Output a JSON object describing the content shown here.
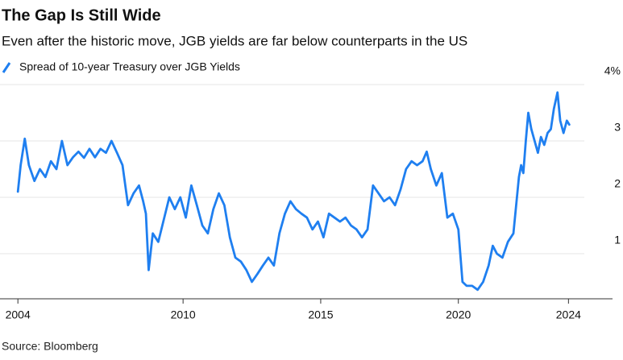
{
  "chart_data": {
    "type": "line",
    "title": "The Gap Is Still Wide",
    "subtitle": "Even after the historic move, JGB yields are far below counterparts in the US",
    "source": "Source: Bloomberg",
    "x": [
      2004.0,
      2004.1,
      2004.25,
      2004.4,
      2004.6,
      2004.8,
      2005.0,
      2005.2,
      2005.4,
      2005.6,
      2005.8,
      2006.0,
      2006.2,
      2006.4,
      2006.6,
      2006.8,
      2007.0,
      2007.2,
      2007.4,
      2007.6,
      2007.8,
      2008.0,
      2008.2,
      2008.4,
      2008.55,
      2008.65,
      2008.75,
      2008.9,
      2009.1,
      2009.5,
      2009.7,
      2009.9,
      2010.1,
      2010.3,
      2010.5,
      2010.7,
      2010.9,
      2011.1,
      2011.3,
      2011.5,
      2011.7,
      2011.9,
      2012.1,
      2012.3,
      2012.5,
      2012.7,
      2012.9,
      2013.1,
      2013.3,
      2013.5,
      2013.7,
      2013.9,
      2014.1,
      2014.3,
      2014.5,
      2014.7,
      2014.9,
      2015.1,
      2015.3,
      2015.5,
      2015.7,
      2015.9,
      2016.1,
      2016.3,
      2016.5,
      2016.7,
      2016.9,
      2017.1,
      2017.3,
      2017.5,
      2017.7,
      2017.9,
      2018.1,
      2018.3,
      2018.5,
      2018.7,
      2018.85,
      2019.0,
      2019.2,
      2019.4,
      2019.6,
      2019.8,
      2020.0,
      2020.15,
      2020.3,
      2020.5,
      2020.7,
      2020.9,
      2021.1,
      2021.25,
      2021.4,
      2021.6,
      2021.8,
      2022.0,
      2022.1,
      2022.2,
      2022.28,
      2022.36,
      2022.45,
      2022.54,
      2022.65,
      2022.77,
      2022.89,
      2023.0,
      2023.12,
      2023.24,
      2023.36,
      2023.47,
      2023.6,
      2023.7,
      2023.82,
      2023.94,
      2024.03
    ],
    "series": [
      {
        "name": "Spread of 10-year Treasury over JGB Yields",
        "color": "#1f7ff0",
        "values": [
          2.1,
          2.57,
          3.04,
          2.57,
          2.29,
          2.5,
          2.36,
          2.64,
          2.5,
          3.0,
          2.57,
          2.71,
          2.81,
          2.7,
          2.86,
          2.71,
          2.86,
          2.79,
          3.0,
          2.79,
          2.57,
          1.86,
          2.07,
          2.21,
          1.93,
          1.71,
          0.71,
          1.36,
          1.21,
          2.0,
          1.79,
          2.0,
          1.64,
          2.21,
          1.86,
          1.5,
          1.36,
          1.79,
          2.07,
          1.86,
          1.29,
          0.93,
          0.86,
          0.71,
          0.5,
          0.64,
          0.79,
          0.93,
          0.79,
          1.36,
          1.71,
          1.93,
          1.79,
          1.71,
          1.64,
          1.43,
          1.57,
          1.29,
          1.71,
          1.64,
          1.57,
          1.64,
          1.5,
          1.43,
          1.29,
          1.43,
          2.21,
          2.07,
          1.93,
          2.0,
          1.86,
          2.14,
          2.5,
          2.64,
          2.57,
          2.64,
          2.81,
          2.5,
          2.21,
          2.43,
          1.64,
          1.71,
          1.43,
          0.5,
          0.43,
          0.43,
          0.36,
          0.5,
          0.79,
          1.14,
          1.0,
          0.93,
          1.21,
          1.36,
          1.86,
          2.36,
          2.57,
          2.43,
          3.0,
          3.5,
          3.21,
          3.0,
          2.79,
          3.07,
          2.93,
          3.14,
          3.21,
          3.57,
          3.86,
          3.36,
          3.14,
          3.36,
          3.29
        ]
      }
    ],
    "xlim": [
      2003.35,
      2025.6
    ],
    "xticks": [
      2004,
      2010,
      2015,
      2020,
      2024
    ],
    "ylim": [
      0.2,
      4.3
    ],
    "yticks": [
      1,
      2,
      3,
      {
        "value": 4,
        "label": "4%"
      }
    ],
    "grid": true
  }
}
